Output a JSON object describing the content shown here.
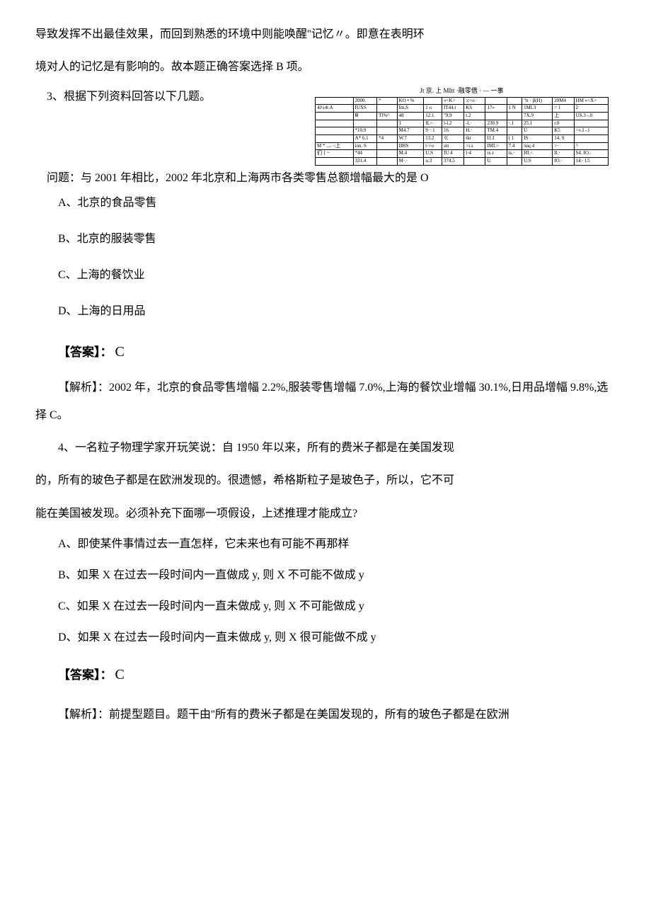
{
  "intro": {
    "line1": "导致发挥不出最佳效果，而回到熟悉的环境中则能唤醒''记忆〃。即意在表明环",
    "line2": "境对人的记忆是有影响的。故本题正确答案选择 B 项。"
  },
  "table": {
    "caption": "Jt 京. 上 MItt ·融零借 · — 一事",
    "rows": [
      [
        "",
        "2000.",
        "*",
        "KO • % ",
        "",
        "«<K>",
        ":c<o ·",
        "",
        "",
        "\"tt · β(H)",
        "20M4",
        "HM  «<X>"
      ],
      [
        "4i¼4t A",
        "IUXS",
        "",
        "Im,S",
        "1 o",
        "IT44.t",
        "KS",
        "17»",
        "1 N",
        "1MI.3",
        "= 1",
        "2"
      ],
      [
        "",
        "Ⅲ",
        "Tl%^",
        "48",
        "12.1",
        "\"9.9",
        "t.2",
        "",
        "",
        "7X.9",
        "上",
        "US.3   -.0"
      ],
      [
        "",
        "",
        "",
        "1",
        "IL<",
        "l-l.2",
        "-l.·",
        "230.9",
        "·.1",
        "25.1",
        "r.0",
        ""
      ],
      [
        "",
        "*10.9",
        "",
        "M4.7",
        "9·· 1",
        "16",
        "H.·",
        "TM.4",
        "",
        "U",
        "K5",
        "=».I      -.l"
      ],
      [
        "",
        "A* 6.1",
        "*4",
        "W.7",
        "13.2",
        "ㄍ",
        "tkt",
        "I1.I",
        "( 1",
        "IS",
        "14. S",
        ""
      ],
      [
        "M * .... ·:上",
        "ion. S",
        "",
        "IIHS",
        "t·>o",
        "ım",
        ">ı.s",
        "IMI.>",
        "7.4",
        "πας.4",
        ">·",
        "^"
      ],
      [
        "们丨~",
        "*44",
        "",
        "M.4",
        "U.S",
        "IU 4",
        "l·4",
        "ıx.r",
        "is.·",
        "HI.<",
        "Il.·",
        "S4.    IO.:"
      ],
      [
        "",
        "331.4",
        "",
        "M·.·",
        "ıı.3",
        "374.5",
        "",
        "U",
        "",
        "U.S",
        "IO.·",
        "14.·    l.5"
      ]
    ]
  },
  "q3": {
    "prompt": "3、根据下列资料回答以下几题。",
    "question": "问题：与 2001 年相比，2002 年北京和上海两市各类零售总额增幅最大的是 O",
    "options": {
      "a": "A、北京的食品零售",
      "b": "B、北京的服装零售",
      "c": "C、上海的餐饮业",
      "d": "D、上海的日用品"
    },
    "answer_label": "【答案】：",
    "answer": "C",
    "analysis": "【解析】：2002 年，北京的食品零售增幅 2.2%,服装零售增幅 7.0%,上海的餐饮业增幅 30.1%,日用品增幅 9.8%,选择 C。"
  },
  "q4": {
    "line1": "4、一名粒子物理学家开玩笑说：自 1950 年以来，所有的费米子都是在美国发现",
    "line2": "的，所有的玻色子都是在欧洲发现的。很遗憾，希格斯粒子是玻色子，所以，它不可",
    "line3": "能在美国被发现。必须补充下面哪一项假设，上述推理才能成立?",
    "options": {
      "a": "A、即使某件事情过去一直怎样，它未来也有可能不再那样",
      "b": "B、如果 X 在过去一段时间内一直做成 y, 则 X 不可能不做成 y",
      "c": "C、如果 X 在过去一段时间内一直未做成 y, 则 X 不可能做成 y",
      "d": "D、如果 X 在过去一段时间内一直未做成 y, 则 X 很可能做不成 y"
    },
    "answer_label": "【答案】：",
    "answer": "C",
    "analysis": "【解析】：前提型题目。题干由''所有的费米子都是在美国发现的，所有的玻色子都是在欧洲"
  }
}
